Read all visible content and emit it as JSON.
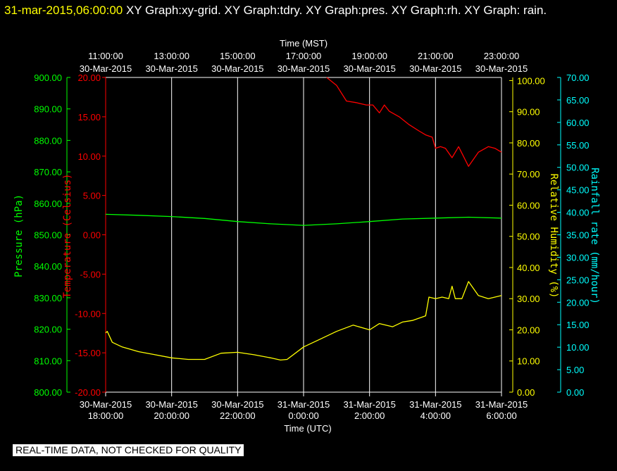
{
  "header": {
    "timestamp": "31-mar-2015,06:00:00",
    "titles": " XY Graph:xy-grid.  XY Graph:tdry.  XY Graph:pres.  XY Graph:rh.  XY Graph: rain."
  },
  "qc_notice": "REAL-TIME DATA, NOT CHECKED FOR QUALITY",
  "colors": {
    "background": "#000000",
    "grid": "#ffffff",
    "pressure": "#00ff00",
    "temperature": "#ff0000",
    "humidity": "#ffff00",
    "rain": "#00ffff"
  },
  "chart_data": {
    "type": "line",
    "x_top": {
      "label": "Time (MST)",
      "ticks": [
        {
          "time": "11:00:00",
          "date": "30-Mar-2015"
        },
        {
          "time": "13:00:00",
          "date": "30-Mar-2015"
        },
        {
          "time": "15:00:00",
          "date": "30-Mar-2015"
        },
        {
          "time": "17:00:00",
          "date": "30-Mar-2015"
        },
        {
          "time": "19:00:00",
          "date": "30-Mar-2015"
        },
        {
          "time": "21:00:00",
          "date": "30-Mar-2015"
        },
        {
          "time": "23:00:00",
          "date": "30-Mar-2015"
        }
      ]
    },
    "x_bottom": {
      "label": "Time (UTC)",
      "range": [
        "2015-03-30 18:00:00",
        "2015-03-31 06:00:00"
      ],
      "ticks": [
        {
          "date": "30-Mar-2015",
          "time": "18:00:00"
        },
        {
          "date": "30-Mar-2015",
          "time": "20:00:00"
        },
        {
          "date": "30-Mar-2015",
          "time": "22:00:00"
        },
        {
          "date": "31-Mar-2015",
          "time": "0:00:00"
        },
        {
          "date": "31-Mar-2015",
          "time": "2:00:00"
        },
        {
          "date": "31-Mar-2015",
          "time": "4:00:00"
        },
        {
          "date": "31-Mar-2015",
          "time": "6:00:00"
        }
      ]
    },
    "y_axes": {
      "pressure": {
        "label": "Pressure (hPa)",
        "ylim": [
          800,
          900
        ],
        "ticks": [
          "800.00",
          "810.00",
          "820.00",
          "830.00",
          "840.00",
          "850.00",
          "860.00",
          "870.00",
          "880.00",
          "890.00",
          "900.00"
        ]
      },
      "temperature": {
        "label": "Temperature (Celsius)",
        "ylim": [
          -20,
          20
        ],
        "ticks": [
          "-20.00",
          "-15.00",
          "-10.00",
          "-5.00",
          "0.00",
          "5.00",
          "10.00",
          "15.00",
          "20.00"
        ]
      },
      "humidity": {
        "label": "Relative Humidity (%)",
        "ylim": [
          0,
          101
        ],
        "ticks": [
          "0.00",
          "10.00",
          "20.00",
          "30.00",
          "40.00",
          "50.00",
          "60.00",
          "70.00",
          "80.00",
          "90.00",
          "100.00"
        ]
      },
      "rain": {
        "label": "Rainfall rate (mm/hour)",
        "ylim": [
          0,
          70
        ],
        "ticks": [
          "0.00",
          "5.00",
          "10.00",
          "15.00",
          "20.00",
          "25.00",
          "30.00",
          "35.00",
          "40.00",
          "45.00",
          "50.00",
          "55.00",
          "60.00",
          "65.00",
          "70.00"
        ]
      }
    },
    "series": [
      {
        "axis": "pressure",
        "x": [
          0,
          1,
          2,
          3,
          4,
          5,
          6,
          7,
          8,
          9,
          10,
          11,
          12
        ],
        "y": [
          856.5,
          856.2,
          855.8,
          855.2,
          854.2,
          853.5,
          853.0,
          853.5,
          854.2,
          855.0,
          855.3,
          855.6,
          855.3
        ]
      },
      {
        "axis": "temperature",
        "x": [
          6.7,
          7.0,
          7.3,
          7.6,
          7.9,
          8.1,
          8.3,
          8.45,
          8.6,
          8.9,
          9.2,
          9.5,
          9.7,
          9.9,
          10.0,
          10.15,
          10.3,
          10.5,
          10.7,
          11.0,
          11.3,
          11.6,
          11.8,
          12.0
        ],
        "y": [
          20.0,
          19.0,
          17.0,
          16.8,
          16.5,
          16.5,
          15.5,
          16.5,
          15.7,
          15.0,
          14.0,
          13.2,
          12.7,
          12.4,
          11.0,
          11.2,
          11.0,
          9.8,
          11.2,
          8.7,
          10.5,
          11.2,
          11.0,
          10.5
        ]
      },
      {
        "axis": "humidity",
        "x": [
          0,
          0.05,
          0.2,
          0.5,
          1.0,
          1.5,
          2.0,
          2.5,
          3.0,
          3.5,
          4.0,
          4.5,
          5.0,
          5.3,
          5.5,
          6.0,
          6.5,
          7.0,
          7.5,
          8.0,
          8.3,
          8.7,
          9.0,
          9.3,
          9.7,
          9.8,
          10.0,
          10.2,
          10.4,
          10.5,
          10.6,
          10.8,
          11.0,
          11.3,
          11.6,
          12.0
        ],
        "y": [
          19.0,
          19.5,
          16.0,
          14.5,
          13.0,
          12.0,
          11.0,
          10.5,
          10.5,
          12.5,
          12.8,
          12.0,
          11.0,
          10.3,
          10.5,
          14.5,
          17.0,
          19.5,
          21.5,
          20.0,
          22.0,
          21.0,
          22.5,
          23.0,
          24.5,
          30.5,
          30.0,
          30.5,
          30.0,
          34.0,
          30.0,
          30.0,
          35.5,
          31.0,
          30.0,
          31.0
        ]
      }
    ]
  }
}
